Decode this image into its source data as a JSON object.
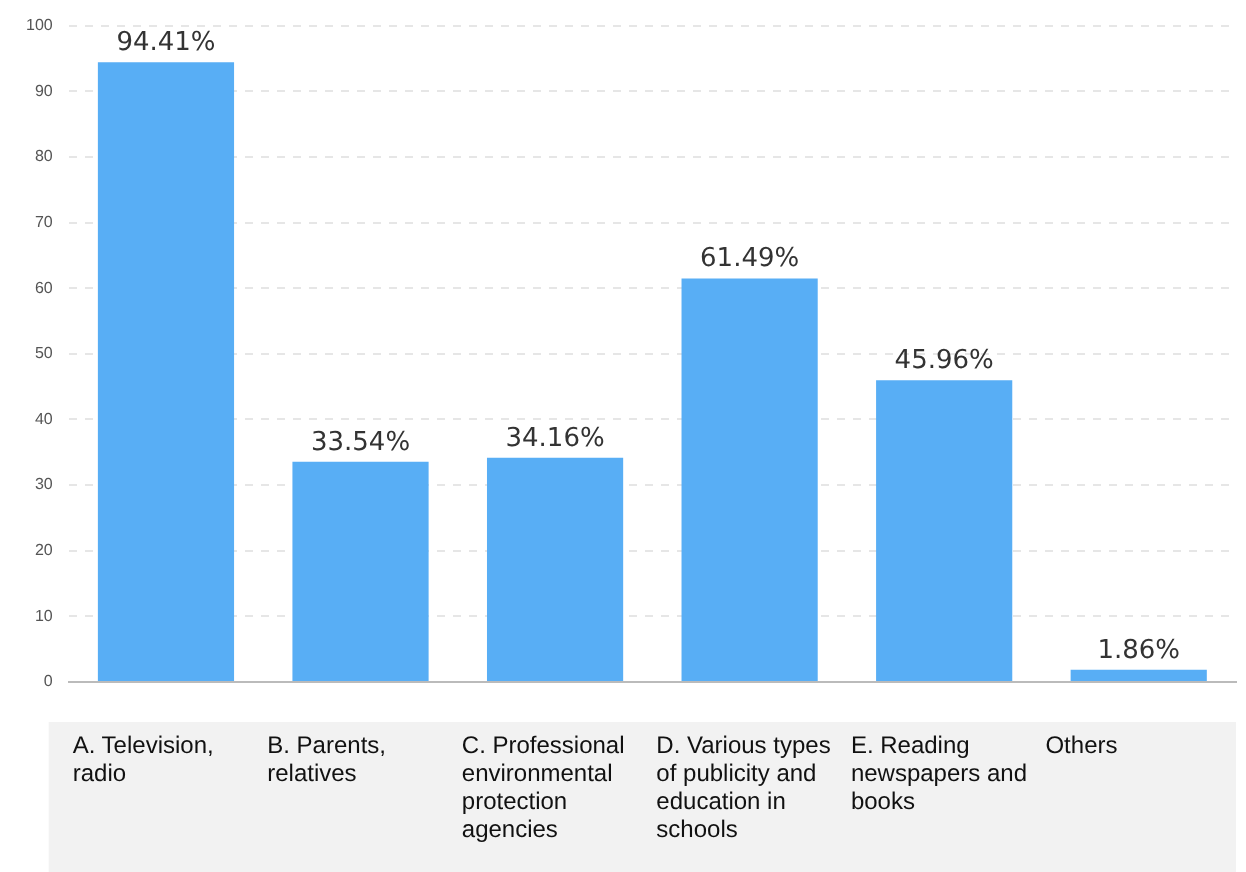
{
  "chart_data": {
    "type": "bar",
    "categories": [
      "A. Television, radio",
      "B. Parents, relatives",
      "C. Professional environmental protection agencies",
      "D. Various types of publicity and education in schools",
      "E. Reading newspapers and books",
      "Others"
    ],
    "values": [
      94.41,
      33.54,
      34.16,
      61.49,
      45.96,
      1.86
    ],
    "value_labels": [
      "94.41%",
      "33.54%",
      "34.16%",
      "61.49%",
      "45.96%",
      "1.86%"
    ],
    "color": "#58aef5",
    "ylim": [
      0,
      100
    ],
    "yticks": [
      0,
      10,
      20,
      30,
      40,
      50,
      60,
      70,
      80,
      90,
      100
    ],
    "grid": "y",
    "legend": false
  }
}
